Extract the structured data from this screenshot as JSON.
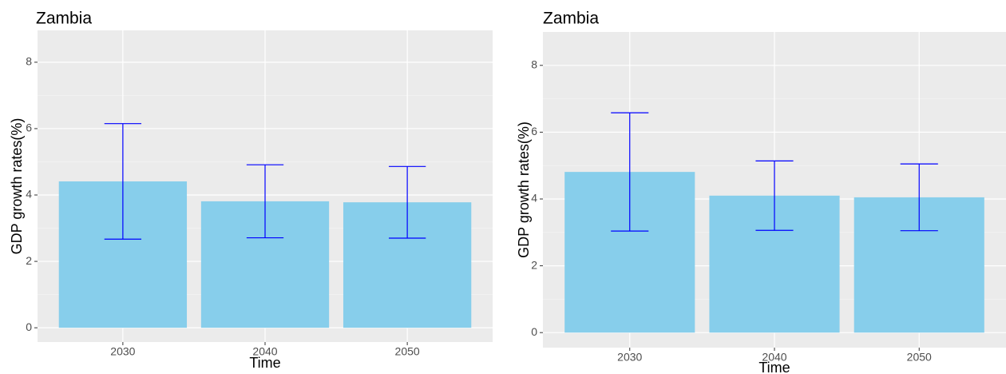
{
  "chart_data": [
    {
      "type": "bar",
      "title": "Zambia",
      "x_label": "Time",
      "y_label": "GDP growth rates(%)",
      "categories": [
        "2030",
        "2040",
        "2050"
      ],
      "values": [
        4.41,
        3.81,
        3.78
      ],
      "errors": [
        1.74,
        1.1,
        1.08
      ],
      "color": "#87ceeb",
      "error_color": "#0000ff",
      "ylim": [
        -0.43,
        8.96
      ],
      "yticks": [
        0,
        2,
        4,
        6,
        8
      ],
      "grid": true
    },
    {
      "type": "bar",
      "title": "Zambia",
      "x_label": "Time",
      "y_label": "GDP growth rates(%)",
      "categories": [
        "2030",
        "2040",
        "2050"
      ],
      "values": [
        4.81,
        4.1,
        4.05
      ],
      "errors": [
        1.77,
        1.04,
        1.0
      ],
      "color": "#87ceeb",
      "error_color": "#0000ff",
      "ylim": [
        -0.45,
        9.0
      ],
      "yticks": [
        0,
        2,
        4,
        6,
        8
      ],
      "grid": true
    }
  ]
}
